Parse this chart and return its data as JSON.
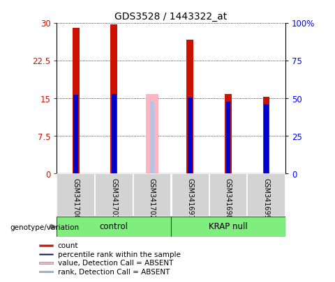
{
  "title": "GDS3528 / 1443322_at",
  "samples": [
    "GSM341700",
    "GSM341701",
    "GSM341702",
    "GSM341697",
    "GSM341698",
    "GSM341699"
  ],
  "absent": [
    false,
    false,
    true,
    false,
    false,
    false
  ],
  "count_values": [
    29.0,
    29.7,
    null,
    26.6,
    15.8,
    15.3
  ],
  "rank_values": [
    15.7,
    15.8,
    null,
    15.2,
    14.3,
    13.8
  ],
  "absent_value": 15.8,
  "absent_rank": 14.5,
  "left_ylim": [
    0,
    30
  ],
  "right_ylim": [
    0,
    100
  ],
  "left_yticks": [
    0,
    7.5,
    15,
    22.5,
    30
  ],
  "right_yticks": [
    0,
    25,
    50,
    75,
    100
  ],
  "left_tick_labels": [
    "0",
    "7.5",
    "15",
    "22.5",
    "30"
  ],
  "right_tick_labels": [
    "0",
    "25",
    "50",
    "75",
    "100%"
  ],
  "bar_color_red": "#cc1100",
  "bar_color_blue": "#0000cc",
  "bar_color_pink": "#ffb6c1",
  "bar_color_lightblue": "#aec6e8",
  "red_bar_width": 0.18,
  "blue_bar_width": 0.12,
  "legend_items": [
    {
      "label": "count",
      "color": "#cc1100"
    },
    {
      "label": "percentile rank within the sample",
      "color": "#0000cc"
    },
    {
      "label": "value, Detection Call = ABSENT",
      "color": "#ffb6c1"
    },
    {
      "label": "rank, Detection Call = ABSENT",
      "color": "#aec6e8"
    }
  ]
}
